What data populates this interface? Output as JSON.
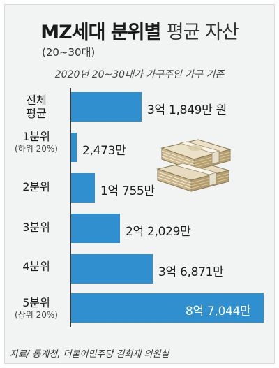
{
  "header": {
    "title_bold": "MZ세대 분위별",
    "title_light": "평균 자산",
    "title_paren": "(20~30대)",
    "subtitle": "2020년 20~30대가 가구주인 가구 기준"
  },
  "source": "자료/ 통계청, 더불어민주당 김회재 의원실",
  "chart_data": {
    "type": "bar",
    "orientation": "horizontal",
    "unit": "만 원",
    "categories": [
      "전체 평균",
      "1분위",
      "2분위",
      "3분위",
      "4분위",
      "5분위"
    ],
    "category_labels": [
      {
        "main": "전체",
        "main2": "평균",
        "sub": ""
      },
      {
        "main": "1분위",
        "main2": "",
        "sub": "(하위 20%)"
      },
      {
        "main": "2분위",
        "main2": "",
        "sub": ""
      },
      {
        "main": "3분위",
        "main2": "",
        "sub": ""
      },
      {
        "main": "4분위",
        "main2": "",
        "sub": ""
      },
      {
        "main": "5분위",
        "main2": "",
        "sub": "(상위 20%)"
      }
    ],
    "values": [
      31849,
      2473,
      10755,
      22029,
      36871,
      87044
    ],
    "value_labels": [
      "3억 1,849만 원",
      "2,473만",
      "1억 755만",
      "2억 2,029만",
      "3억 6,871만",
      "8억 7,044만"
    ],
    "bar_color": "#2f8fcf",
    "grid": false
  },
  "illustration": {
    "icon": "money-stack-icon"
  }
}
